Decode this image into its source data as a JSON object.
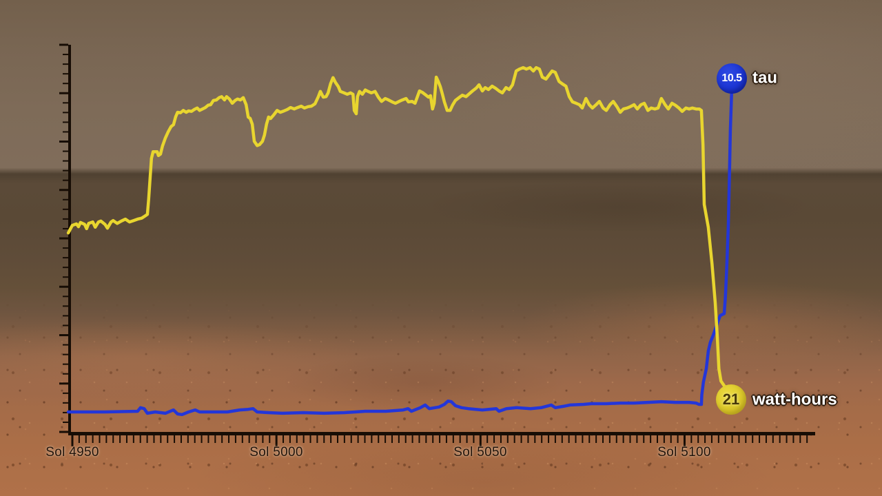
{
  "scene": {
    "description": "Line chart of Opportunity rover solar energy (watt-hours) and atmospheric opacity (tau) overlaid on a Mars surface panorama"
  },
  "chart_data": {
    "type": "line",
    "background_colors": {
      "sky": "#7d6a57",
      "horizon": "#4f4131",
      "midground": "#5d4b38",
      "foreground": "#ad7048"
    },
    "axis_color": "#170d05",
    "x_axis": {
      "labels": [
        "Sol 4950",
        "Sol 5000",
        "Sol 5050",
        "Sol 5100"
      ],
      "sols": [
        4950,
        5000,
        5050,
        5100
      ]
    },
    "series": [
      {
        "name": "watt-hours",
        "color": "#e8d52f",
        "end_label": {
          "value": "21",
          "unit": "watt-hours"
        },
        "points": [
          [
            4949,
            372
          ],
          [
            4950,
            388
          ],
          [
            4951,
            391
          ],
          [
            4951.5,
            385
          ],
          [
            4952,
            394
          ],
          [
            4953,
            390
          ],
          [
            4953.5,
            381
          ],
          [
            4954,
            392
          ],
          [
            4955,
            395
          ],
          [
            4955.6,
            384
          ],
          [
            4956.4,
            395
          ],
          [
            4957,
            397
          ],
          [
            4958,
            390
          ],
          [
            4958.6,
            382
          ],
          [
            4959.5,
            395
          ],
          [
            4960,
            398
          ],
          [
            4961,
            392
          ],
          [
            4962,
            397
          ],
          [
            4963,
            401
          ],
          [
            4964,
            395
          ],
          [
            4965,
            398
          ],
          [
            4966,
            401
          ],
          [
            4967,
            403
          ],
          [
            4967.7,
            407
          ],
          [
            4968.4,
            411
          ],
          [
            4968.7,
            442
          ],
          [
            4969.1,
            493
          ],
          [
            4969.4,
            529
          ],
          [
            4969.8,
            543
          ],
          [
            4970.8,
            543
          ],
          [
            4971.1,
            535
          ],
          [
            4971.6,
            538
          ],
          [
            4972.1,
            555
          ],
          [
            4972.8,
            572
          ],
          [
            4973.5,
            585
          ],
          [
            4974.2,
            596
          ],
          [
            4974.8,
            600
          ],
          [
            4975.3,
            616
          ],
          [
            4975.8,
            626
          ],
          [
            4976.5,
            625
          ],
          [
            4977.2,
            630
          ],
          [
            4977.9,
            626
          ],
          [
            4978.5,
            629
          ],
          [
            4979.2,
            628
          ],
          [
            4979.9,
            632
          ],
          [
            4980.6,
            635
          ],
          [
            4981.2,
            630
          ],
          [
            4981.9,
            633
          ],
          [
            4982.6,
            636
          ],
          [
            4983.3,
            641
          ],
          [
            4983.9,
            642
          ],
          [
            4984.6,
            651
          ],
          [
            4985.3,
            652
          ],
          [
            4986,
            657
          ],
          [
            4986.6,
            659
          ],
          [
            4987.3,
            652
          ],
          [
            4987.8,
            659
          ],
          [
            4988.5,
            654
          ],
          [
            4989.2,
            645
          ],
          [
            4989.9,
            651
          ],
          [
            4990.5,
            654
          ],
          [
            4991.2,
            652
          ],
          [
            4991.9,
            657
          ],
          [
            4992.6,
            642
          ],
          [
            4993.1,
            616
          ],
          [
            4993.6,
            613
          ],
          [
            4994.1,
            601
          ],
          [
            4994.6,
            565
          ],
          [
            4995.3,
            556
          ],
          [
            4995.9,
            558
          ],
          [
            4996.6,
            565
          ],
          [
            4997.1,
            578
          ],
          [
            4997.6,
            601
          ],
          [
            4998.1,
            616
          ],
          [
            4998.6,
            613
          ],
          [
            4999.3,
            620
          ],
          [
            5000.2,
            630
          ],
          [
            5001,
            626
          ],
          [
            5001.9,
            629
          ],
          [
            5002.7,
            632
          ],
          [
            5003.5,
            636
          ],
          [
            5004.4,
            633
          ],
          [
            5005.2,
            636
          ],
          [
            5006.1,
            639
          ],
          [
            5006.9,
            635
          ],
          [
            5007.8,
            638
          ],
          [
            5008.6,
            639
          ],
          [
            5009.5,
            644
          ],
          [
            5010.3,
            659
          ],
          [
            5010.8,
            670
          ],
          [
            5011.5,
            658
          ],
          [
            5012.2,
            659
          ],
          [
            5012.7,
            667
          ],
          [
            5013.3,
            686
          ],
          [
            5013.9,
            699
          ],
          [
            5014.5,
            689
          ],
          [
            5015.2,
            680
          ],
          [
            5015.7,
            670
          ],
          [
            5016.6,
            667
          ],
          [
            5017.4,
            664
          ],
          [
            5018.2,
            667
          ],
          [
            5018.8,
            664
          ],
          [
            5019.1,
            630
          ],
          [
            5019.6,
            623
          ],
          [
            5019.9,
            659
          ],
          [
            5020.4,
            670
          ],
          [
            5021.1,
            664
          ],
          [
            5021.8,
            673
          ],
          [
            5022.5,
            670
          ],
          [
            5023.3,
            667
          ],
          [
            5024.2,
            670
          ],
          [
            5025,
            658
          ],
          [
            5025.8,
            649
          ],
          [
            5026.7,
            655
          ],
          [
            5027.5,
            652
          ],
          [
            5028.4,
            648
          ],
          [
            5029.2,
            645
          ],
          [
            5030.1,
            649
          ],
          [
            5030.9,
            652
          ],
          [
            5031.8,
            655
          ],
          [
            5032.4,
            648
          ],
          [
            5033.3,
            649
          ],
          [
            5034,
            645
          ],
          [
            5034.6,
            659
          ],
          [
            5035.1,
            671
          ],
          [
            5035.8,
            668
          ],
          [
            5036.7,
            662
          ],
          [
            5037.3,
            658
          ],
          [
            5037.8,
            661
          ],
          [
            5038.3,
            633
          ],
          [
            5038.7,
            645
          ],
          [
            5039.2,
            700
          ],
          [
            5039.7,
            691
          ],
          [
            5040.2,
            680
          ],
          [
            5040.7,
            665
          ],
          [
            5041.2,
            648
          ],
          [
            5041.9,
            630
          ],
          [
            5042.6,
            630
          ],
          [
            5043.2,
            641
          ],
          [
            5043.9,
            651
          ],
          [
            5044.8,
            657
          ],
          [
            5045.6,
            662
          ],
          [
            5046.5,
            659
          ],
          [
            5047.3,
            665
          ],
          [
            5048.1,
            671
          ],
          [
            5049,
            677
          ],
          [
            5049.7,
            684
          ],
          [
            5050.5,
            671
          ],
          [
            5051.2,
            678
          ],
          [
            5052,
            674
          ],
          [
            5052.9,
            681
          ],
          [
            5053.7,
            677
          ],
          [
            5054.6,
            671
          ],
          [
            5055.4,
            667
          ],
          [
            5056.3,
            678
          ],
          [
            5057.1,
            674
          ],
          [
            5057.9,
            684
          ],
          [
            5058.8,
            713
          ],
          [
            5059.6,
            717
          ],
          [
            5060.5,
            720
          ],
          [
            5061.3,
            717
          ],
          [
            5062.2,
            720
          ],
          [
            5063,
            713
          ],
          [
            5063.7,
            720
          ],
          [
            5064.5,
            717
          ],
          [
            5065.2,
            700
          ],
          [
            5066.1,
            696
          ],
          [
            5066.7,
            703
          ],
          [
            5067.6,
            713
          ],
          [
            5068.4,
            710
          ],
          [
            5069.3,
            691
          ],
          [
            5070.1,
            686
          ],
          [
            5071,
            681
          ],
          [
            5071.8,
            659
          ],
          [
            5072.6,
            648
          ],
          [
            5073.5,
            645
          ],
          [
            5074.3,
            642
          ],
          [
            5075,
            635
          ],
          [
            5075.9,
            655
          ],
          [
            5076.7,
            642
          ],
          [
            5077.5,
            635
          ],
          [
            5078.4,
            642
          ],
          [
            5079.2,
            649
          ],
          [
            5080.1,
            635
          ],
          [
            5080.9,
            630
          ],
          [
            5081.8,
            642
          ],
          [
            5082.6,
            649
          ],
          [
            5083.5,
            638
          ],
          [
            5084.3,
            626
          ],
          [
            5085.1,
            633
          ],
          [
            5086,
            635
          ],
          [
            5086.8,
            638
          ],
          [
            5087.7,
            642
          ],
          [
            5088.5,
            633
          ],
          [
            5089.4,
            642
          ],
          [
            5090.2,
            645
          ],
          [
            5091.1,
            630
          ],
          [
            5091.9,
            635
          ],
          [
            5092.8,
            633
          ],
          [
            5093.6,
            635
          ],
          [
            5094.4,
            655
          ],
          [
            5095.3,
            642
          ],
          [
            5096.1,
            633
          ],
          [
            5097,
            645
          ],
          [
            5097.8,
            641
          ],
          [
            5098.7,
            635
          ],
          [
            5099.5,
            628
          ],
          [
            5100.4,
            635
          ],
          [
            5101.2,
            633
          ],
          [
            5102,
            635
          ],
          [
            5102.9,
            633
          ],
          [
            5103.7,
            633
          ],
          [
            5104.2,
            630
          ],
          [
            5104.6,
            558
          ],
          [
            5104.9,
            432
          ],
          [
            5105.9,
            384
          ],
          [
            5106.8,
            307
          ],
          [
            5107.6,
            224
          ],
          [
            5108.1,
            152
          ],
          [
            5108.5,
            86
          ],
          [
            5109,
            60
          ],
          [
            5109.8,
            50
          ],
          [
            5110.7,
            43
          ],
          [
            5111.3,
            33
          ],
          [
            5111.7,
            21
          ]
        ]
      },
      {
        "name": "tau",
        "color": "#2336d9",
        "end_label": {
          "value": "10.5",
          "unit": "tau"
        },
        "points": [
          [
            4949,
            0.4
          ],
          [
            4958,
            0.4
          ],
          [
            4966,
            0.42
          ],
          [
            4966.7,
            0.53
          ],
          [
            4967.6,
            0.5
          ],
          [
            4968.4,
            0.36
          ],
          [
            4970.3,
            0.4
          ],
          [
            4972.8,
            0.36
          ],
          [
            4974.8,
            0.46
          ],
          [
            4975.8,
            0.34
          ],
          [
            4976.9,
            0.32
          ],
          [
            4978.5,
            0.4
          ],
          [
            4980.1,
            0.46
          ],
          [
            4981.2,
            0.4
          ],
          [
            4984.6,
            0.4
          ],
          [
            4988,
            0.4
          ],
          [
            4991,
            0.46
          ],
          [
            4993.1,
            0.48
          ],
          [
            4994.3,
            0.5
          ],
          [
            4995.3,
            0.4
          ],
          [
            4998.1,
            0.38
          ],
          [
            5001.5,
            0.36
          ],
          [
            5006.6,
            0.38
          ],
          [
            5011.7,
            0.36
          ],
          [
            5016.7,
            0.38
          ],
          [
            5021.8,
            0.42
          ],
          [
            5026.9,
            0.42
          ],
          [
            5031.1,
            0.46
          ],
          [
            5032.3,
            0.5
          ],
          [
            5033.1,
            0.42
          ],
          [
            5035.3,
            0.53
          ],
          [
            5036.5,
            0.61
          ],
          [
            5037.5,
            0.5
          ],
          [
            5039.9,
            0.55
          ],
          [
            5041.2,
            0.63
          ],
          [
            5042.1,
            0.73
          ],
          [
            5042.9,
            0.71
          ],
          [
            5043.9,
            0.59
          ],
          [
            5045.4,
            0.53
          ],
          [
            5047.1,
            0.5
          ],
          [
            5050.5,
            0.46
          ],
          [
            5053.9,
            0.5
          ],
          [
            5054.6,
            0.42
          ],
          [
            5056.4,
            0.5
          ],
          [
            5058.9,
            0.53
          ],
          [
            5062.3,
            0.5
          ],
          [
            5064.9,
            0.53
          ],
          [
            5067.4,
            0.61
          ],
          [
            5068.4,
            0.53
          ],
          [
            5070.3,
            0.57
          ],
          [
            5072,
            0.61
          ],
          [
            5075.3,
            0.63
          ],
          [
            5077.2,
            0.65
          ],
          [
            5080.9,
            0.65
          ],
          [
            5084.3,
            0.67
          ],
          [
            5087.7,
            0.67
          ],
          [
            5091.1,
            0.69
          ],
          [
            5094.4,
            0.71
          ],
          [
            5097.8,
            0.69
          ],
          [
            5101.2,
            0.69
          ],
          [
            5102.9,
            0.67
          ],
          [
            5103.6,
            0.63
          ],
          [
            5104.2,
            0.63
          ],
          [
            5104.3,
            0.92
          ],
          [
            5104.7,
            1.3
          ],
          [
            5105.4,
            1.71
          ],
          [
            5105.9,
            2.24
          ],
          [
            5106.4,
            2.51
          ],
          [
            5107.1,
            2.72
          ],
          [
            5107.9,
            3.01
          ],
          [
            5108.8,
            3.32
          ],
          [
            5109.8,
            3.38
          ],
          [
            5110.1,
            3.91
          ],
          [
            5110.4,
            4.74
          ],
          [
            5110.8,
            5.99
          ],
          [
            5111.1,
            7.66
          ],
          [
            5111.3,
            8.91
          ],
          [
            5111.6,
            10.04
          ],
          [
            5111.6,
            10.5
          ]
        ]
      }
    ]
  }
}
